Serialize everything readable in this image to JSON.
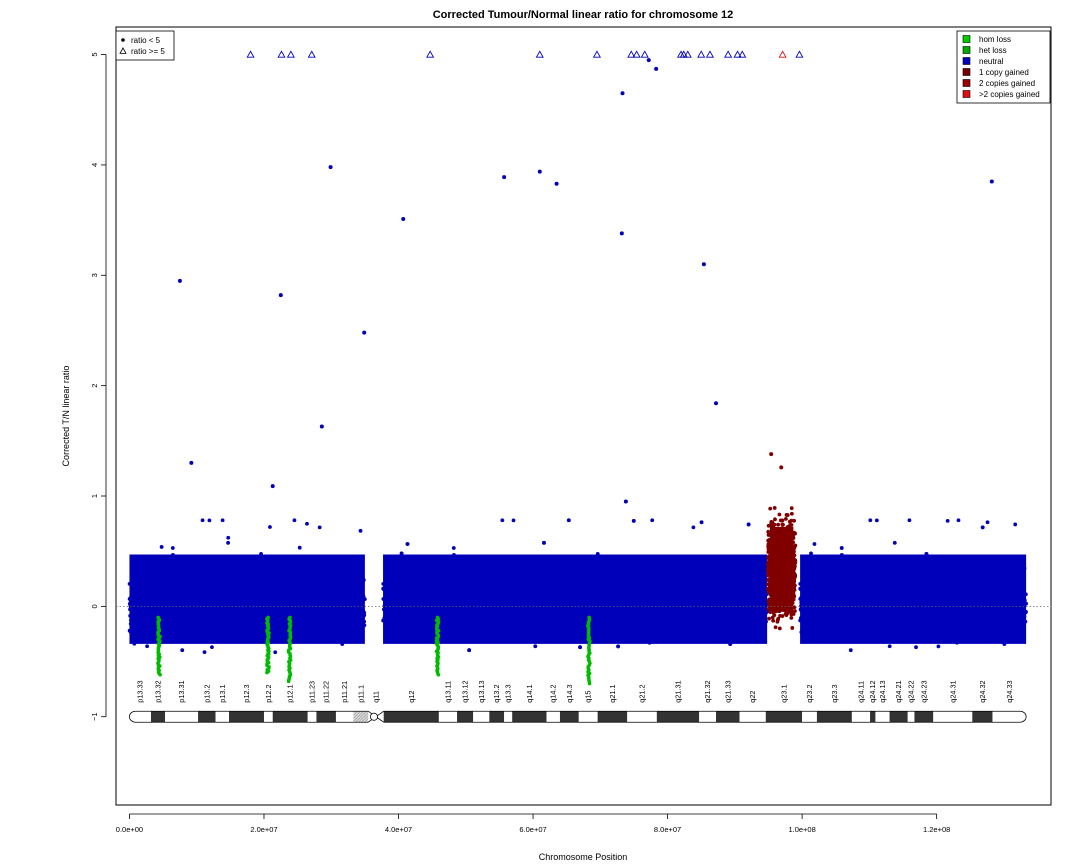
{
  "chart_data": {
    "type": "scatter",
    "title": "Corrected Tumour/Normal linear ratio for chromosome  12",
    "xlabel": "Chromosome Position",
    "ylabel": "Corrected T/N linear ratio",
    "xlim": [
      -2000000,
      137000000
    ],
    "ylim": [
      -1.8,
      5.25
    ],
    "x_ticks": [
      0,
      20000000,
      40000000,
      60000000,
      80000000,
      100000000,
      120000000
    ],
    "x_tick_labels": [
      "0.0e+00",
      "2.0e+07",
      "4.0e+07",
      "6.0e+07",
      "8.0e+07",
      "1.0e+08",
      "1.2e+08"
    ],
    "y_ticks": [
      -1,
      0,
      1,
      2,
      3,
      4,
      5
    ],
    "y_tick_labels": [
      "−1",
      "0",
      "1",
      "2",
      "3",
      "4",
      "5"
    ],
    "reference_line_y": 0,
    "shape_legend": {
      "position": "top-left",
      "items": [
        {
          "label": "ratio < 5",
          "symbol": "dot"
        },
        {
          "label": "ratio >= 5",
          "symbol": "triangle"
        }
      ]
    },
    "color_legend": {
      "position": "top-right",
      "items": [
        {
          "label": "hom loss",
          "color": "#00cc00"
        },
        {
          "label": "het loss",
          "color": "#00aa00"
        },
        {
          "label": "neutral",
          "color": "#0000bb"
        },
        {
          "label": "1 copy gained",
          "color": "#770000"
        },
        {
          "label": "2 copies gained",
          "color": "#990000"
        },
        {
          "label": ">2 copies gained",
          "color": "#dd1111"
        }
      ]
    },
    "colors": {
      "neutral": "#0000bb",
      "het_loss": "#00bb00",
      "gain": "#800000",
      "gain_triangle": "#dd1111"
    },
    "series": [
      {
        "name": "neutral",
        "segments": [
          {
            "x_start": 0,
            "x_end": 35000000,
            "y_min": -0.42,
            "y_max": 0.55
          },
          {
            "x_start": 37700000,
            "x_end": 94800000,
            "y_min": -0.42,
            "y_max": 0.55
          },
          {
            "x_start": 99700000,
            "x_end": 133300000,
            "y_min": -0.42,
            "y_max": 0.55
          }
        ],
        "outliers": [
          {
            "x": 7500000,
            "y": 2.95
          },
          {
            "x": 9200000,
            "y": 1.3
          },
          {
            "x": 21300000,
            "y": 1.09
          },
          {
            "x": 22500000,
            "y": 2.82
          },
          {
            "x": 28600000,
            "y": 1.63
          },
          {
            "x": 29900000,
            "y": 3.98
          },
          {
            "x": 34900000,
            "y": 2.48
          },
          {
            "x": 40700000,
            "y": 3.51
          },
          {
            "x": 55700000,
            "y": 3.89
          },
          {
            "x": 61000000,
            "y": 3.94
          },
          {
            "x": 63500000,
            "y": 3.83
          },
          {
            "x": 73200000,
            "y": 3.38
          },
          {
            "x": 73300000,
            "y": 4.65
          },
          {
            "x": 77200000,
            "y": 4.95
          },
          {
            "x": 78300000,
            "y": 4.87
          },
          {
            "x": 85400000,
            "y": 3.1
          },
          {
            "x": 87200000,
            "y": 1.84
          },
          {
            "x": 73800000,
            "y": 0.95
          },
          {
            "x": 128200000,
            "y": 3.85
          }
        ],
        "capped_at_5": [
          18000000,
          22600000,
          24000000,
          27100000,
          44700000,
          61000000,
          69500000,
          74600000,
          75400000,
          76600000,
          82000000,
          82400000,
          83000000,
          85000000,
          86300000,
          89000000,
          90400000,
          91100000,
          99600000
        ]
      },
      {
        "name": "het loss",
        "dips": [
          {
            "x": 4400000,
            "y_min": -0.62
          },
          {
            "x": 20600000,
            "y_min": -0.6
          },
          {
            "x": 23800000,
            "y_min": -0.68
          },
          {
            "x": 45800000,
            "y_min": -0.62
          },
          {
            "x": 68300000,
            "y_min": -0.7
          }
        ]
      },
      {
        "name": "1 copy gained",
        "segment": {
          "x_start": 94900000,
          "x_end": 99000000,
          "y_min": -0.2,
          "y_max": 1.05
        },
        "outliers": [
          {
            "x": 95400000,
            "y": 1.38
          },
          {
            "x": 96900000,
            "y": 1.26
          }
        ],
        "capped_at_5": [
          97100000
        ]
      }
    ],
    "ideogram": {
      "y": -1,
      "bands": [
        {
          "name": "p13.33",
          "start": 0,
          "end": 3200000,
          "stain": "white"
        },
        {
          "name": "p13.32",
          "start": 3200000,
          "end": 5300000,
          "stain": "dark"
        },
        {
          "name": "p13.31",
          "start": 5300000,
          "end": 10200000,
          "stain": "white"
        },
        {
          "name": "p13.2",
          "start": 10200000,
          "end": 12800000,
          "stain": "dark"
        },
        {
          "name": "p13.1",
          "start": 12800000,
          "end": 14800000,
          "stain": "white"
        },
        {
          "name": "p12.3",
          "start": 14800000,
          "end": 20000000,
          "stain": "dark"
        },
        {
          "name": "p12.2",
          "start": 20000000,
          "end": 21300000,
          "stain": "white"
        },
        {
          "name": "p12.1",
          "start": 21300000,
          "end": 26500000,
          "stain": "dark"
        },
        {
          "name": "p11.23",
          "start": 26500000,
          "end": 27800000,
          "stain": "white"
        },
        {
          "name": "p11.22",
          "start": 27800000,
          "end": 30700000,
          "stain": "dark"
        },
        {
          "name": "p11.21",
          "start": 30700000,
          "end": 33300000,
          "stain": "white"
        },
        {
          "name": "p11.1",
          "start": 33300000,
          "end": 35500000,
          "stain": "stalk"
        },
        {
          "name": "q11",
          "start": 35500000,
          "end": 37800000,
          "stain": "acen"
        },
        {
          "name": "q12",
          "start": 37800000,
          "end": 46000000,
          "stain": "dark"
        },
        {
          "name": "q13.11",
          "start": 46000000,
          "end": 48700000,
          "stain": "white"
        },
        {
          "name": "q13.12",
          "start": 48700000,
          "end": 51100000,
          "stain": "dark"
        },
        {
          "name": "q13.13",
          "start": 51100000,
          "end": 53500000,
          "stain": "white"
        },
        {
          "name": "q13.2",
          "start": 53500000,
          "end": 55700000,
          "stain": "dark"
        },
        {
          "name": "q13.3",
          "start": 55700000,
          "end": 56900000,
          "stain": "white"
        },
        {
          "name": "q14.1",
          "start": 56900000,
          "end": 62000000,
          "stain": "dark"
        },
        {
          "name": "q14.2",
          "start": 62000000,
          "end": 64000000,
          "stain": "white"
        },
        {
          "name": "q14.3",
          "start": 64000000,
          "end": 66800000,
          "stain": "dark"
        },
        {
          "name": "q15",
          "start": 66800000,
          "end": 69600000,
          "stain": "white"
        },
        {
          "name": "q21.1",
          "start": 69600000,
          "end": 74000000,
          "stain": "dark"
        },
        {
          "name": "q21.2",
          "start": 74000000,
          "end": 78400000,
          "stain": "white"
        },
        {
          "name": "q21.31",
          "start": 78400000,
          "end": 84700000,
          "stain": "dark"
        },
        {
          "name": "q21.32",
          "start": 84700000,
          "end": 87200000,
          "stain": "white"
        },
        {
          "name": "q21.33",
          "start": 87200000,
          "end": 90700000,
          "stain": "dark"
        },
        {
          "name": "q22",
          "start": 90700000,
          "end": 94600000,
          "stain": "white"
        },
        {
          "name": "q23.1",
          "start": 94600000,
          "end": 100000000,
          "stain": "dark"
        },
        {
          "name": "q23.2",
          "start": 100000000,
          "end": 102200000,
          "stain": "white"
        },
        {
          "name": "q23.3",
          "start": 102200000,
          "end": 107400000,
          "stain": "dark"
        },
        {
          "name": "q24.11",
          "start": 107400000,
          "end": 110100000,
          "stain": "white"
        },
        {
          "name": "q24.12",
          "start": 110100000,
          "end": 110900000,
          "stain": "dark"
        },
        {
          "name": "q24.13",
          "start": 110900000,
          "end": 113000000,
          "stain": "white"
        },
        {
          "name": "q24.21",
          "start": 113000000,
          "end": 115700000,
          "stain": "dark"
        },
        {
          "name": "q24.22",
          "start": 115700000,
          "end": 116700000,
          "stain": "white"
        },
        {
          "name": "q24.23",
          "start": 116700000,
          "end": 119500000,
          "stain": "dark"
        },
        {
          "name": "q24.31",
          "start": 119500000,
          "end": 125300000,
          "stain": "white"
        },
        {
          "name": "q24.32",
          "start": 125300000,
          "end": 128300000,
          "stain": "dark"
        },
        {
          "name": "q24.33",
          "start": 128300000,
          "end": 133300000,
          "stain": "white"
        }
      ]
    }
  }
}
